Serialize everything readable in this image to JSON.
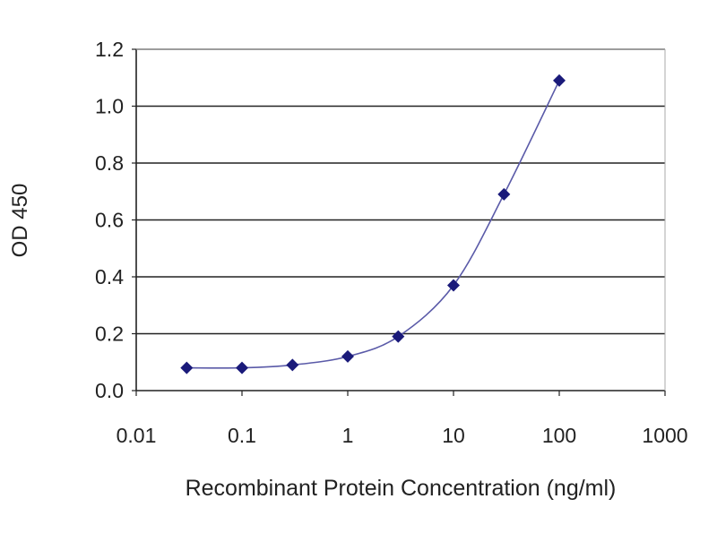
{
  "chart_data": {
    "type": "line",
    "title": "",
    "xlabel": "Recombinant Protein Concentration (ng/ml)",
    "ylabel": "OD 450",
    "x_scale": "log",
    "xlim": [
      0.01,
      1000
    ],
    "ylim": [
      0,
      1.2
    ],
    "x_ticks": [
      "0.01",
      "0.1",
      "1",
      "10",
      "100",
      "1000"
    ],
    "x_tick_values": [
      0.01,
      0.1,
      1,
      10,
      100,
      1000
    ],
    "y_ticks": [
      "0.0",
      "0.2",
      "0.4",
      "0.6",
      "0.8",
      "1.0",
      "1.2"
    ],
    "y_tick_values": [
      0,
      0.2,
      0.4,
      0.6,
      0.8,
      1.0,
      1.2
    ],
    "grid": "horizontal",
    "series": [
      {
        "x": [
          0.03,
          0.1,
          0.3,
          1,
          3,
          10,
          30,
          100
        ],
        "y": [
          0.08,
          0.08,
          0.09,
          0.12,
          0.19,
          0.37,
          0.69,
          1.09
        ],
        "color": "#1a1a7a",
        "marker": "diamond",
        "smooth": true
      }
    ]
  }
}
